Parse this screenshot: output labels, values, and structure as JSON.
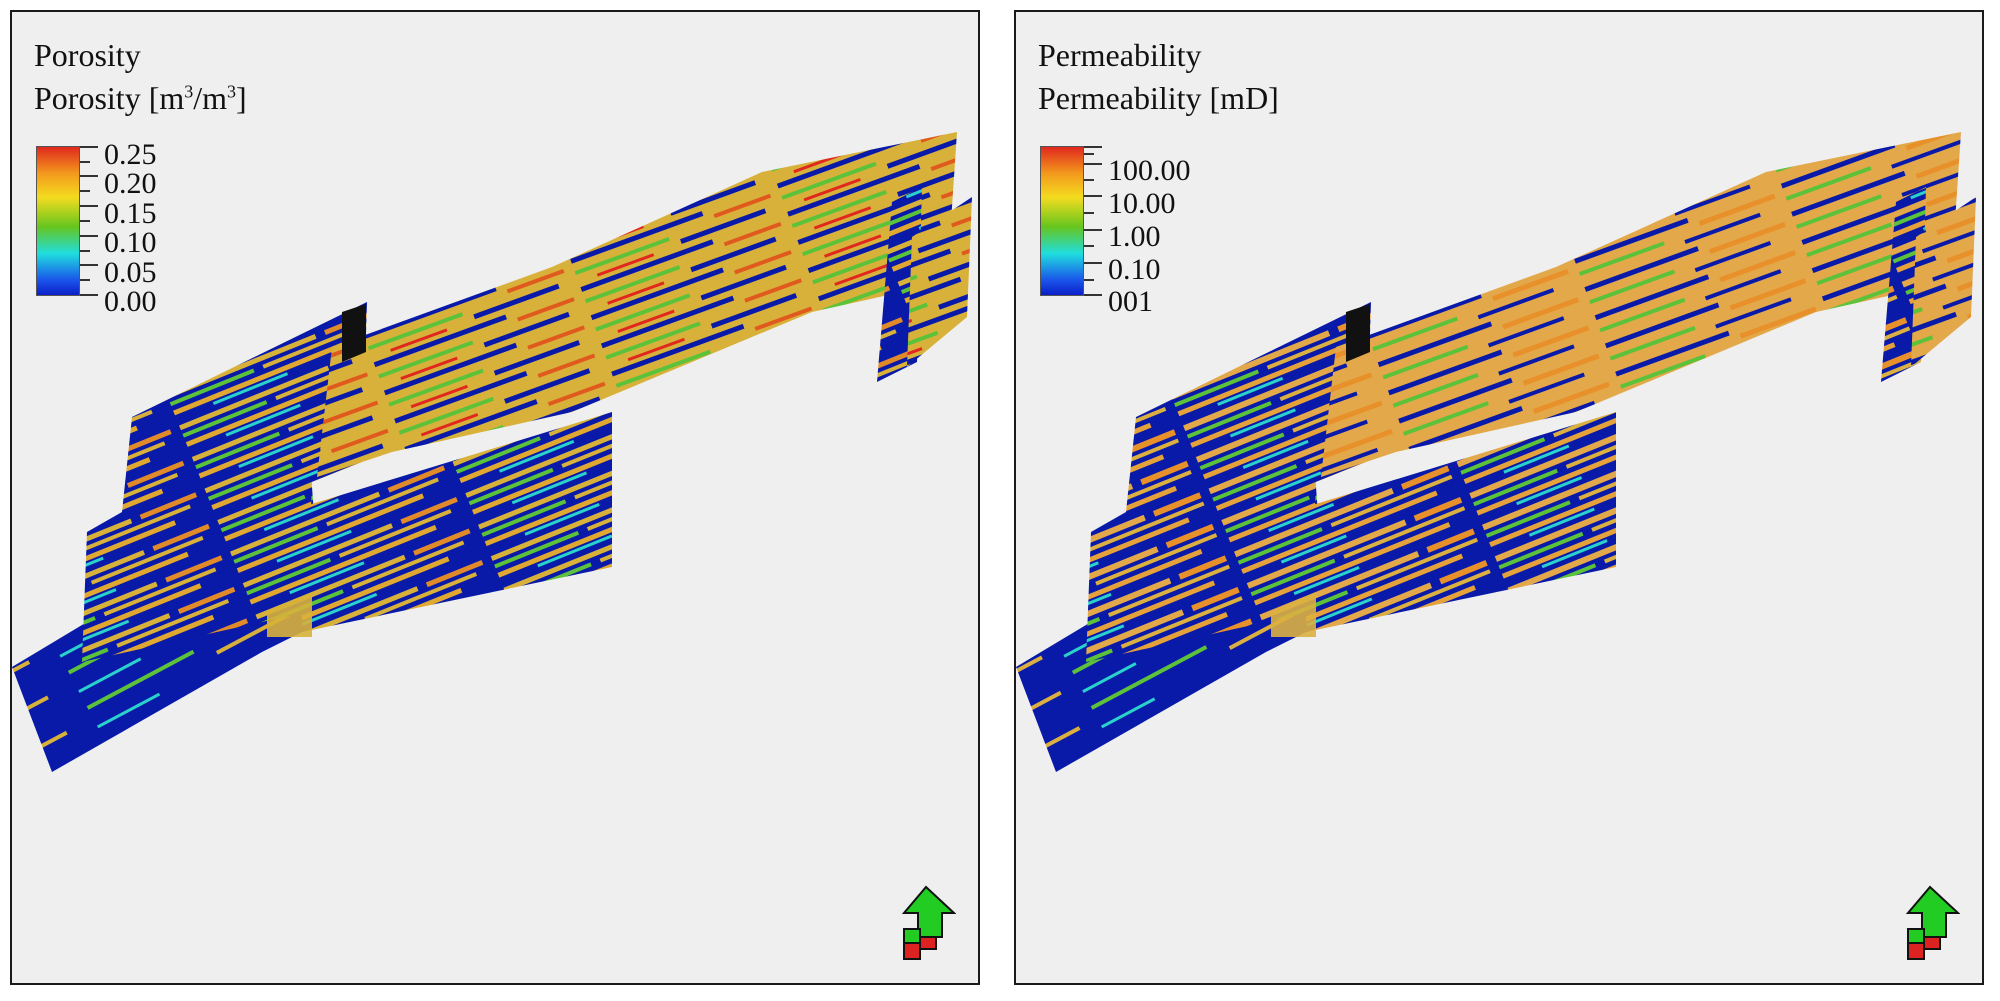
{
  "panels": [
    {
      "title": "Porosity",
      "subtitle": "Porosity [m",
      "subtitle_sup1": "3",
      "subtitle_mid": "/m",
      "subtitle_sup2": "3",
      "subtitle_end": "]",
      "legend_ticks": [
        "0.25",
        "0.20",
        "0.15",
        "0.10",
        "0.05",
        "0.00"
      ]
    },
    {
      "title": "Permeability",
      "subtitle": "Permeability [mD]",
      "legend_ticks": [
        "100.00",
        "10.00",
        "1.00",
        "0.10",
        "001"
      ]
    }
  ],
  "colors": {
    "deep_blue": "#0a1aa8",
    "yellow": "#d8b13a",
    "orange": "#e08a2a",
    "green": "#5cc23a",
    "cyan": "#2ad2cc",
    "red": "#e0281e",
    "compass_green": "#22cc22",
    "compass_red": "#dd2222"
  },
  "icons": {
    "compass": "north-arrow-icon"
  }
}
